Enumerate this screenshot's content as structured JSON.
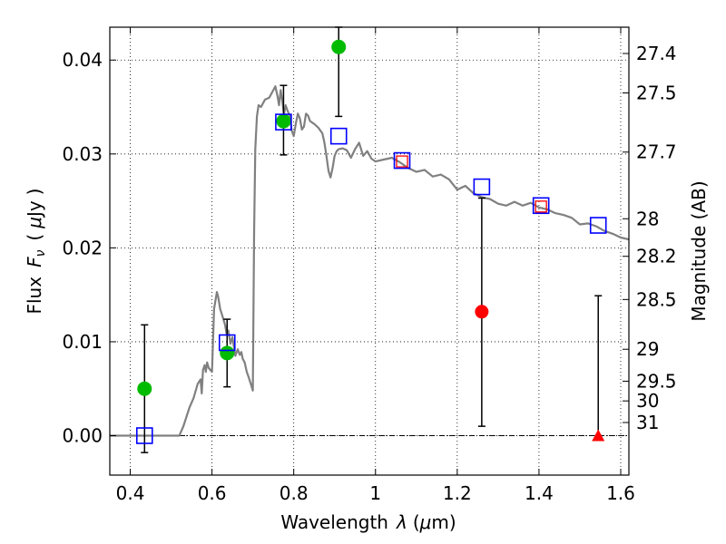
{
  "chart_data": {
    "type": "scatter",
    "xlabel_parts": [
      "Wavelength",
      "λ",
      "(",
      "μ",
      "m)"
    ],
    "ylabel_parts": [
      "Flux",
      "F",
      "ν",
      "(",
      "μ",
      "Jy",
      ")"
    ],
    "right_ylabel": "Magnitude (AB)",
    "xlim": [
      0.35,
      1.62
    ],
    "ylim": [
      -0.0042,
      0.0435
    ],
    "grid": true,
    "x_ticks": [
      {
        "value": 0.4,
        "label": "0.4"
      },
      {
        "value": 0.6,
        "label": "0.6"
      },
      {
        "value": 0.8,
        "label": "0.8"
      },
      {
        "value": 1.0,
        "label": "1"
      },
      {
        "value": 1.2,
        "label": "1.2"
      },
      {
        "value": 1.4,
        "label": "1.4"
      },
      {
        "value": 1.6,
        "label": "1.6"
      }
    ],
    "y_ticks": [
      {
        "value": 0.0,
        "label": "0.00"
      },
      {
        "value": 0.01,
        "label": "0.01"
      },
      {
        "value": 0.02,
        "label": "0.02"
      },
      {
        "value": 0.03,
        "label": "0.03"
      },
      {
        "value": 0.04,
        "label": "0.04"
      }
    ],
    "mag_ticks": [
      {
        "label": "27.4",
        "flux": 0.0407
      },
      {
        "label": "27.5",
        "flux": 0.0365
      },
      {
        "label": "27.7",
        "flux": 0.0302
      },
      {
        "label": "28",
        "flux": 0.0231
      },
      {
        "label": "28.2",
        "flux": 0.0191
      },
      {
        "label": "28.5",
        "flux": 0.0145
      },
      {
        "label": "29",
        "flux": 0.0092
      },
      {
        "label": "29.5",
        "flux": 0.0058
      },
      {
        "label": "30",
        "flux": 0.0037
      },
      {
        "label": "31",
        "flux": 0.0014
      }
    ],
    "colors": {
      "model_line": "#808080",
      "observed_point": "#00bb00",
      "observed_nondetection": "#ff0000",
      "model_box": "#0000ff",
      "inner_box": "#ff0000",
      "errorbar": "#000000"
    },
    "model_spectrum": {
      "x": [
        0.35,
        0.52,
        0.53,
        0.545,
        0.555,
        0.565,
        0.572,
        0.575,
        0.578,
        0.582,
        0.585,
        0.588,
        0.592,
        0.6,
        0.605,
        0.612,
        0.615,
        0.62,
        0.625,
        0.632,
        0.636,
        0.64,
        0.645,
        0.65,
        0.657,
        0.663,
        0.668,
        0.672,
        0.675,
        0.68,
        0.685,
        0.69,
        0.695,
        0.7,
        0.703,
        0.706,
        0.71,
        0.714,
        0.72,
        0.73,
        0.74,
        0.75,
        0.755,
        0.76,
        0.764,
        0.768,
        0.772,
        0.776,
        0.78,
        0.785,
        0.79,
        0.795,
        0.8,
        0.805,
        0.81,
        0.815,
        0.82,
        0.825,
        0.83,
        0.835,
        0.84,
        0.85,
        0.86,
        0.87,
        0.875,
        0.88,
        0.885,
        0.89,
        0.895,
        0.9,
        0.905,
        0.91,
        0.92,
        0.93,
        0.94,
        0.95,
        0.96,
        0.97,
        0.98,
        0.99,
        1.0,
        1.02,
        1.04,
        1.06,
        1.08,
        1.1,
        1.12,
        1.14,
        1.16,
        1.18,
        1.2,
        1.22,
        1.24,
        1.26,
        1.28,
        1.3,
        1.32,
        1.34,
        1.36,
        1.38,
        1.4,
        1.42,
        1.44,
        1.46,
        1.48,
        1.5,
        1.52,
        1.54,
        1.56,
        1.58,
        1.6,
        1.62
      ],
      "y": [
        0.0,
        0.0,
        0.001,
        0.003,
        0.004,
        0.0055,
        0.006,
        0.0045,
        0.007,
        0.0075,
        0.0068,
        0.0078,
        0.0072,
        0.0068,
        0.0135,
        0.0153,
        0.0148,
        0.0135,
        0.0128,
        0.0118,
        0.0108,
        0.0112,
        0.0098,
        0.0105,
        0.0085,
        0.0092,
        0.0086,
        0.0089,
        0.0082,
        0.0078,
        0.0068,
        0.0062,
        0.0055,
        0.0048,
        0.0215,
        0.0305,
        0.034,
        0.0352,
        0.035,
        0.0358,
        0.036,
        0.0368,
        0.0372,
        0.0362,
        0.0352,
        0.0368,
        0.0356,
        0.0342,
        0.0352,
        0.0346,
        0.0341,
        0.0325,
        0.0319,
        0.0332,
        0.0343,
        0.0338,
        0.0326,
        0.0329,
        0.0343,
        0.0341,
        0.0335,
        0.0332,
        0.0328,
        0.0322,
        0.0312,
        0.0298,
        0.0282,
        0.0275,
        0.0285,
        0.0298,
        0.0303,
        0.0305,
        0.0306,
        0.0304,
        0.0296,
        0.0305,
        0.0312,
        0.0298,
        0.0303,
        0.0295,
        0.0292,
        0.0294,
        0.0296,
        0.0291,
        0.0285,
        0.0281,
        0.0283,
        0.0276,
        0.0278,
        0.0273,
        0.0262,
        0.0266,
        0.0258,
        0.0254,
        0.0252,
        0.0247,
        0.0245,
        0.0249,
        0.0245,
        0.0248,
        0.0243,
        0.0241,
        0.0237,
        0.0235,
        0.0232,
        0.0225,
        0.0226,
        0.0223,
        0.0218,
        0.0215,
        0.0211,
        0.0209
      ]
    },
    "observed_detections": [
      {
        "x": 0.435,
        "y": 0.005,
        "yerr_low": -0.0018,
        "yerr_high": 0.0118
      },
      {
        "x": 0.637,
        "y": 0.0088,
        "yerr_low": 0.0052,
        "yerr_high": 0.0124
      },
      {
        "x": 0.775,
        "y": 0.0335,
        "yerr_low": 0.0299,
        "yerr_high": 0.0373
      },
      {
        "x": 0.91,
        "y": 0.0414,
        "yerr_low": 0.034,
        "yerr_high": 0.0435
      }
    ],
    "observed_red": [
      {
        "x": 1.26,
        "y": 0.0132,
        "yerr_low": 0.001,
        "yerr_high": 0.0253,
        "marker": "circle"
      },
      {
        "x": 1.545,
        "y": 0.0,
        "yerr_low": 0.0,
        "yerr_high": 0.0149,
        "marker": "triangle"
      }
    ],
    "model_photometry": [
      {
        "x": 0.435,
        "y": 0.0
      },
      {
        "x": 0.637,
        "y": 0.0099
      },
      {
        "x": 0.775,
        "y": 0.0334
      },
      {
        "x": 0.91,
        "y": 0.0319
      },
      {
        "x": 1.065,
        "y": 0.0293
      },
      {
        "x": 1.26,
        "y": 0.0265
      },
      {
        "x": 1.405,
        "y": 0.0245
      },
      {
        "x": 1.545,
        "y": 0.0224
      }
    ],
    "inner_boxes": [
      {
        "x": 1.065,
        "y": 0.0292
      },
      {
        "x": 1.405,
        "y": 0.0244
      }
    ]
  }
}
